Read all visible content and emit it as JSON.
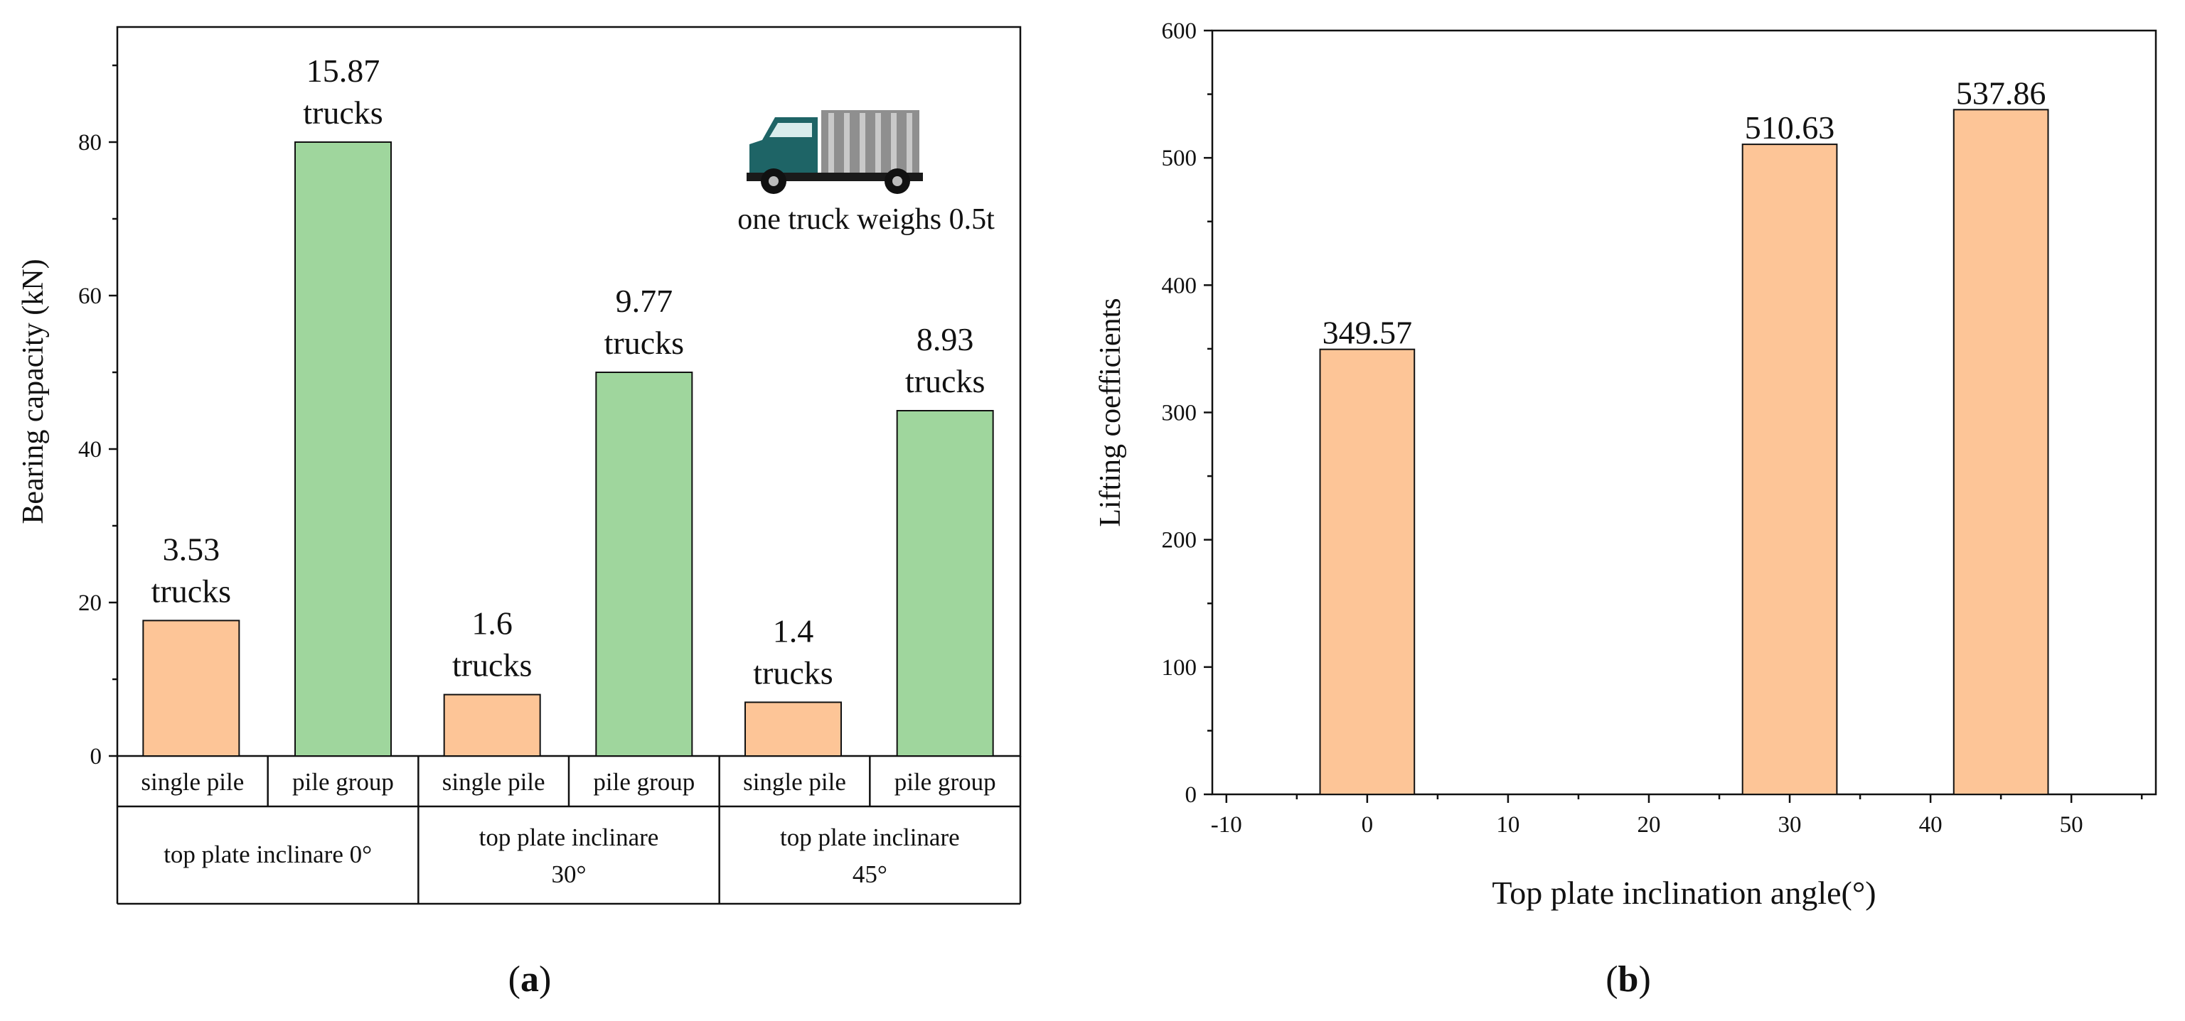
{
  "chart_data": [
    {
      "type": "bar",
      "panel_label": "a",
      "ylabel": "Bearing capacity (kN)",
      "xlabel": "",
      "ylim": [
        0,
        95
      ],
      "y_major_ticks": [
        0,
        20,
        40,
        60,
        80
      ],
      "y_minor_ticks": [
        10,
        30,
        50,
        70,
        90
      ],
      "groups": [
        {
          "label": "top plate inclinare 0°",
          "bars": [
            {
              "category": "single pile",
              "value": 17.65,
              "count": "3.53",
              "unit": "trucks"
            },
            {
              "category": "pile group",
              "value": 80,
              "count": "15.87",
              "unit": "trucks"
            }
          ]
        },
        {
          "label": "top plate inclinare 30°",
          "bars": [
            {
              "category": "single pile",
              "value": 8,
              "count": "1.6",
              "unit": "trucks"
            },
            {
              "category": "pile group",
              "value": 50,
              "count": "9.77",
              "unit": "trucks"
            }
          ]
        },
        {
          "label": "top plate inclinare 45°",
          "bars": [
            {
              "category": "single pile",
              "value": 7,
              "count": "1.4",
              "unit": "trucks"
            },
            {
              "category": "pile group",
              "value": 45,
              "count": "8.93",
              "unit": "trucks"
            }
          ]
        }
      ],
      "annotation": "one truck weighs 0.5t",
      "colors": {
        "single_pile": "#fdc597",
        "pile_group": "#9fd69d",
        "truck_cab": "#1e6466",
        "truck_cargo": "#8f8f8f"
      }
    },
    {
      "type": "bar",
      "panel_label": "b",
      "xlabel": "Top plate inclination angle(°)",
      "ylabel": "Lifting coefficients",
      "xlim": [
        -11,
        56
      ],
      "ylim": [
        0,
        600
      ],
      "x_ticks": [
        -10,
        0,
        10,
        20,
        30,
        40,
        50
      ],
      "y_ticks": [
        0,
        100,
        200,
        300,
        400,
        500,
        600
      ],
      "bar_width": 6.7,
      "x": [
        0,
        30,
        45
      ],
      "values": [
        349.57,
        510.63,
        537.86
      ],
      "value_labels": [
        "349.57",
        "510.63",
        "537.86"
      ],
      "colors": {
        "bar": "#fdc597"
      }
    }
  ]
}
